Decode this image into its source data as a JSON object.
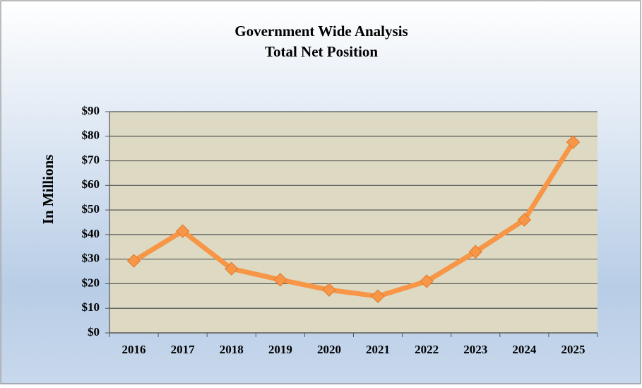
{
  "chart_data": {
    "type": "line",
    "title": "Government Wide Analysis",
    "subtitle": "Total Net Position",
    "y_label": "In Millions",
    "categories": [
      "2016",
      "2017",
      "2018",
      "2019",
      "2020",
      "2021",
      "2022",
      "2023",
      "2024",
      "2025"
    ],
    "series": [
      {
        "name": "Total Net Position",
        "color": "#f79646",
        "values": [
          29.3,
          41.4,
          26.1,
          21.6,
          17.5,
          14.9,
          21,
          33,
          46,
          77.6
        ]
      }
    ],
    "ylim": [
      0,
      90
    ],
    "yticks": [
      {
        "value": 0,
        "label": "$0"
      },
      {
        "value": 10,
        "label": "$10"
      },
      {
        "value": 20,
        "label": "$20"
      },
      {
        "value": 30,
        "label": "$30"
      },
      {
        "value": 40,
        "label": "$40"
      },
      {
        "value": 50,
        "label": "$50"
      },
      {
        "value": 60,
        "label": "$60"
      },
      {
        "value": 70,
        "label": "$70"
      },
      {
        "value": 80,
        "label": "$80"
      },
      {
        "value": 90,
        "label": "$90"
      }
    ],
    "grid": true
  }
}
